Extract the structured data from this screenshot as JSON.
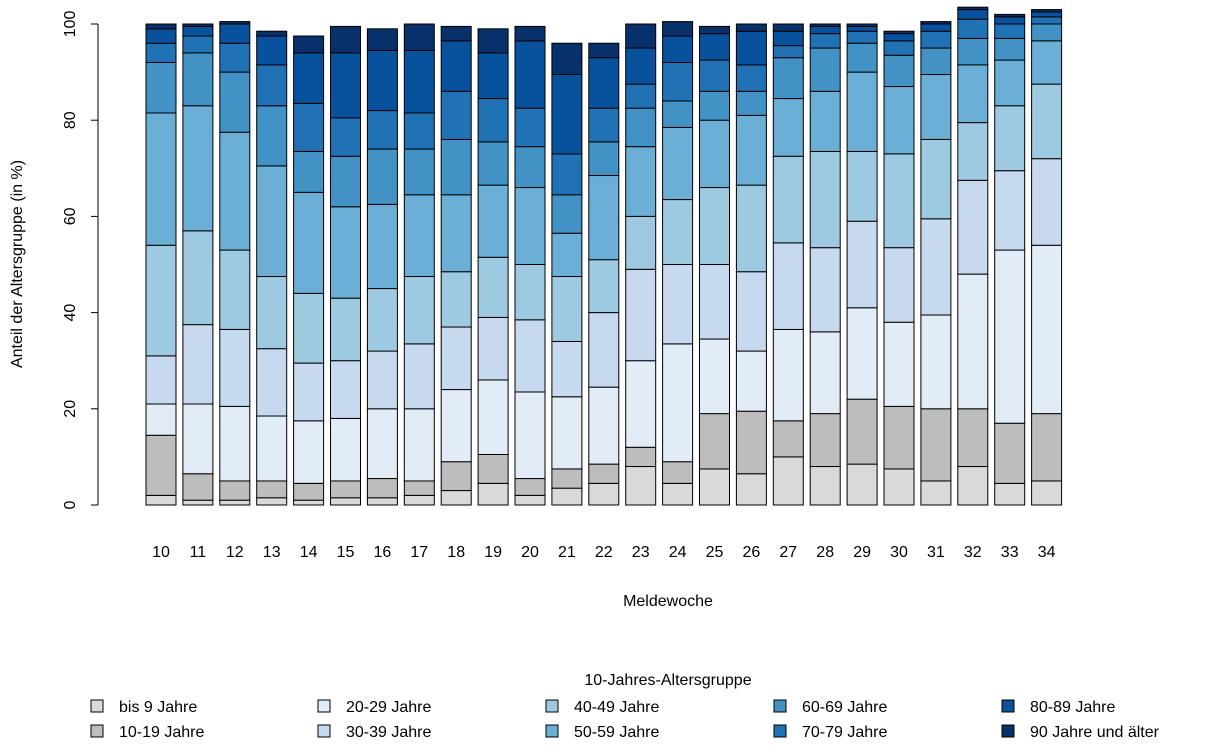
{
  "chart_data": {
    "type": "bar",
    "stacked": true,
    "title": "",
    "xlabel": "Meldewoche",
    "ylabel": "Anteil der Altersgruppe (in %)",
    "ylim": [
      0,
      100
    ],
    "yticks": [
      0,
      20,
      40,
      60,
      80,
      100
    ],
    "grid": false,
    "legend_title": "10-Jahres-Altersgruppe",
    "legend_position": "bottom",
    "categories": [
      "10",
      "11",
      "12",
      "13",
      "14",
      "15",
      "16",
      "17",
      "18",
      "19",
      "20",
      "21",
      "22",
      "23",
      "24",
      "25",
      "26",
      "27",
      "28",
      "29",
      "30",
      "31",
      "32",
      "33",
      "34"
    ],
    "series": [
      {
        "name": "bis 9 Jahre",
        "color": "#d9d9d9",
        "values": [
          2,
          1,
          1,
          1.5,
          1,
          1.5,
          1.5,
          2,
          3,
          4.5,
          2,
          3.5,
          4.5,
          8,
          4.5,
          7.5,
          6.5,
          10,
          8,
          8.5,
          7.5,
          5,
          8,
          4.5,
          5
        ]
      },
      {
        "name": "10-19 Jahre",
        "color": "#bdbdbd",
        "values": [
          12.5,
          5.5,
          4,
          3.5,
          3.5,
          3.5,
          4,
          3,
          6,
          6,
          3.5,
          4,
          4,
          4,
          4.5,
          11.5,
          13,
          7.5,
          11,
          13.5,
          13,
          15,
          12,
          12.5,
          14
        ]
      },
      {
        "name": "20-29 Jahre",
        "color": "#e1ecf7",
        "values": [
          6.5,
          14.5,
          15.5,
          13.5,
          13,
          13,
          14.5,
          15,
          15,
          15.5,
          18,
          15,
          16,
          18,
          24.5,
          15.5,
          12.5,
          19,
          17,
          19,
          17.5,
          19.5,
          28,
          36,
          35
        ]
      },
      {
        "name": "30-39 Jahre",
        "color": "#c7d9ef",
        "values": [
          10,
          16.5,
          16,
          14,
          12,
          12,
          12,
          13.5,
          13,
          13,
          15,
          11.5,
          15.5,
          19,
          16.5,
          15.5,
          16.5,
          18,
          17.5,
          18,
          15.5,
          20,
          19.5,
          16.5,
          18
        ]
      },
      {
        "name": "40-49 Jahre",
        "color": "#9ecae1",
        "values": [
          23,
          19.5,
          16.5,
          15,
          14.5,
          13,
          13,
          14,
          11.5,
          12.5,
          11.5,
          13.5,
          11,
          11,
          13.5,
          16,
          18,
          18,
          20,
          14.5,
          19.5,
          16.5,
          12,
          13.5,
          15.5
        ]
      },
      {
        "name": "50-59 Jahre",
        "color": "#6baed6",
        "values": [
          27.5,
          26,
          24.5,
          23,
          21,
          19,
          17.5,
          17,
          16,
          15,
          16,
          9,
          17.5,
          14.5,
          15,
          14,
          14.5,
          12,
          12.5,
          16.5,
          14,
          13.5,
          12,
          9.5,
          9
        ]
      },
      {
        "name": "60-69 Jahre",
        "color": "#4292c6",
        "values": [
          10.5,
          11,
          12.5,
          12.5,
          8.5,
          10.5,
          11.5,
          9.5,
          11.5,
          9,
          8.5,
          8,
          7,
          8,
          5.5,
          6,
          5,
          8.5,
          9,
          6,
          6.5,
          5.5,
          5.5,
          4.5,
          3.5
        ]
      },
      {
        "name": "70-79 Jahre",
        "color": "#2171b5",
        "values": [
          4,
          3.5,
          6,
          8.5,
          10,
          8,
          8,
          7.5,
          10,
          9,
          8,
          8.5,
          7,
          5,
          8,
          6.5,
          5.5,
          2.5,
          3,
          2.5,
          3,
          3.5,
          4,
          3,
          1.5
        ]
      },
      {
        "name": "80-89 Jahre",
        "color": "#08519c",
        "values": [
          3,
          2,
          4,
          6,
          10.5,
          13.5,
          12.5,
          13,
          10.5,
          9.5,
          14,
          16.5,
          10.5,
          7.5,
          5.5,
          5.5,
          7,
          3,
          1.5,
          1,
          1.5,
          1.5,
          2,
          1.5,
          1
        ]
      },
      {
        "name": "90 Jahre und älter",
        "color": "#08306b",
        "values": [
          1,
          0.5,
          0.5,
          1,
          3.5,
          5.5,
          4.5,
          5.5,
          3,
          5,
          3,
          6.5,
          3,
          5,
          3,
          1.5,
          1.5,
          1.5,
          0.5,
          0.5,
          0.5,
          0.5,
          0.5,
          0.5,
          0.5
        ]
      }
    ]
  }
}
